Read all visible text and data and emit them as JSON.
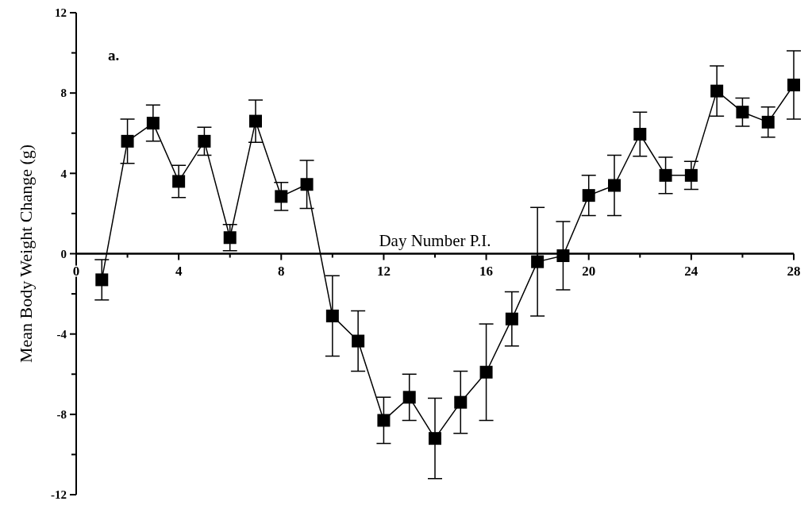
{
  "chart_data": {
    "type": "line",
    "xlabel": "Day Number P.I.",
    "ylabel": "Mean Body Weight Change (g)",
    "annotations": [
      "a."
    ],
    "x": [
      1,
      2,
      3,
      4,
      5,
      6,
      7,
      8,
      9,
      10,
      11,
      12,
      13,
      14,
      15,
      16,
      17,
      18,
      19,
      20,
      21,
      22,
      23,
      24,
      25,
      26,
      27,
      28
    ],
    "series": [
      {
        "color": "#000000",
        "values": [
          -1.3,
          5.6,
          6.5,
          3.6,
          5.6,
          0.8,
          6.6,
          2.85,
          3.45,
          -3.1,
          -4.35,
          -8.3,
          -7.15,
          -9.2,
          -7.4,
          -5.9,
          -3.25,
          -0.4,
          -0.1,
          2.9,
          3.4,
          5.95,
          3.9,
          3.9,
          8.1,
          7.05,
          6.55,
          8.4
        ],
        "errors": [
          1.0,
          1.1,
          0.9,
          0.8,
          0.7,
          0.65,
          1.05,
          0.7,
          1.2,
          2.0,
          1.5,
          1.15,
          1.15,
          2.0,
          1.55,
          2.4,
          1.35,
          2.7,
          1.7,
          1.0,
          1.5,
          1.1,
          0.9,
          0.7,
          1.25,
          0.7,
          0.75,
          1.7
        ]
      }
    ],
    "xlim": [
      0,
      28
    ],
    "xticks": [
      0,
      {
        "value": 2,
        "label": null
      },
      4,
      {
        "value": 6,
        "label": null
      },
      8,
      {
        "value": 10,
        "label": null
      },
      12,
      {
        "value": 14,
        "label": null
      },
      16,
      {
        "value": 18,
        "label": null
      },
      20,
      {
        "value": 22,
        "label": null
      },
      24,
      {
        "value": 26,
        "label": null
      },
      28
    ],
    "ylim": [
      -12,
      12
    ],
    "yticks": [
      -12,
      {
        "value": -10,
        "label": null
      },
      -8,
      {
        "value": -6,
        "label": null
      },
      -4,
      {
        "value": -2,
        "label": null
      },
      0,
      {
        "value": 2,
        "label": null
      },
      4,
      {
        "value": 6,
        "label": null
      },
      8,
      {
        "value": 10,
        "label": null
      },
      12
    ],
    "marker": "square",
    "line_style": "solid",
    "grid": false
  }
}
